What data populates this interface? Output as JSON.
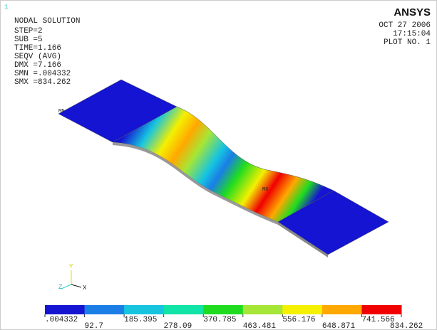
{
  "header": {
    "window_number": "1",
    "title": "NODAL SOLUTION",
    "lines": [
      "STEP=2",
      "SUB =5",
      "TIME=1.166",
      "SEQV     (AVG)",
      "DMX =7.166",
      "SMN =.004332",
      "SMX =834.262"
    ]
  },
  "logo": "ANSYS",
  "info": [
    "OCT 27 2006",
    "17:15:04",
    "PLOT NO.   1"
  ],
  "markers": {
    "min": "MN",
    "max": "MX"
  },
  "triad": {
    "y": "Y",
    "z": "Z",
    "x": "X"
  },
  "legend": {
    "colors": [
      "#1414d2",
      "#1a7ee6",
      "#16c4e0",
      "#10e4a6",
      "#20dc20",
      "#a6e636",
      "#f4f000",
      "#ffa800",
      "#f00000"
    ],
    "labels": [
      ".004332",
      "92.7",
      "185.395",
      "278.09",
      "370.785",
      "463.481",
      "556.176",
      "648.871",
      "741.566",
      "834.262"
    ]
  }
}
